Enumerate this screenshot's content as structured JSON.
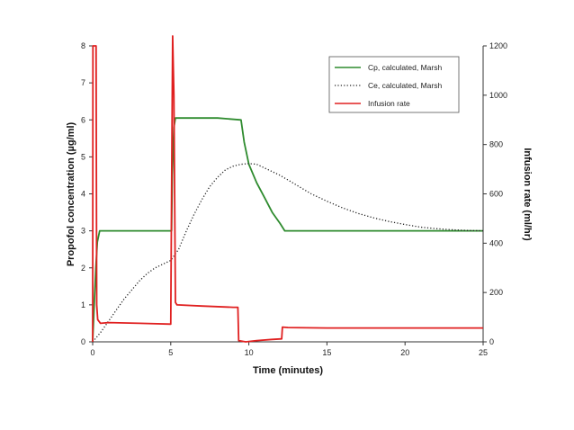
{
  "chart_data": {
    "type": "line",
    "xlabel": "Time (minutes)",
    "ylabel": "Propofol concentration (µg/ml)",
    "y2label": "Infusion rate (ml/hr)",
    "xlim": [
      0,
      25
    ],
    "ylim": [
      0,
      8
    ],
    "y2lim": [
      0,
      1200
    ],
    "x_ticks": [
      "0",
      "5",
      "10",
      "15",
      "20",
      "25"
    ],
    "y_ticks": [
      "0",
      "1",
      "2",
      "3",
      "4",
      "5",
      "6",
      "7",
      "8"
    ],
    "y2_ticks": [
      "0",
      "200",
      "400",
      "600",
      "800",
      "1000",
      "1200"
    ],
    "legend_position": "top-right",
    "series": [
      {
        "name": "Cp, calculated, Marsh",
        "axis": "left",
        "color": "#2e8b2e",
        "style": "solid",
        "points": [
          [
            0,
            0
          ],
          [
            0.1,
            1.0
          ],
          [
            0.2,
            2.0
          ],
          [
            0.3,
            2.7
          ],
          [
            0.45,
            3.0
          ],
          [
            1.0,
            3.0
          ],
          [
            5.05,
            3.0
          ],
          [
            5.1,
            4.5
          ],
          [
            5.2,
            5.8
          ],
          [
            5.3,
            6.05
          ],
          [
            7.0,
            6.05
          ],
          [
            8.0,
            6.05
          ],
          [
            9.5,
            6.0
          ],
          [
            9.7,
            5.4
          ],
          [
            10.0,
            4.8
          ],
          [
            10.5,
            4.3
          ],
          [
            11.0,
            3.9
          ],
          [
            11.5,
            3.5
          ],
          [
            12.0,
            3.2
          ],
          [
            12.3,
            3.0
          ],
          [
            15.0,
            3.0
          ],
          [
            20.0,
            3.0
          ],
          [
            25.0,
            3.0
          ]
        ]
      },
      {
        "name": "Ce, calculated, Marsh",
        "axis": "left",
        "color": "#222222",
        "style": "dotted",
        "points": [
          [
            0,
            0
          ],
          [
            0.5,
            0.25
          ],
          [
            1.0,
            0.55
          ],
          [
            1.5,
            0.85
          ],
          [
            2.0,
            1.15
          ],
          [
            2.5,
            1.4
          ],
          [
            3.0,
            1.65
          ],
          [
            3.5,
            1.85
          ],
          [
            4.0,
            2.0
          ],
          [
            4.5,
            2.1
          ],
          [
            5.0,
            2.2
          ],
          [
            5.5,
            2.5
          ],
          [
            6.0,
            3.0
          ],
          [
            6.5,
            3.45
          ],
          [
            7.0,
            3.85
          ],
          [
            7.5,
            4.2
          ],
          [
            8.0,
            4.45
          ],
          [
            8.5,
            4.65
          ],
          [
            9.0,
            4.75
          ],
          [
            9.5,
            4.8
          ],
          [
            10.0,
            4.82
          ],
          [
            10.5,
            4.8
          ],
          [
            11.0,
            4.7
          ],
          [
            12.0,
            4.5
          ],
          [
            13.0,
            4.25
          ],
          [
            14.0,
            4.0
          ],
          [
            15.0,
            3.8
          ],
          [
            16.0,
            3.62
          ],
          [
            17.0,
            3.47
          ],
          [
            18.0,
            3.35
          ],
          [
            19.0,
            3.25
          ],
          [
            20.0,
            3.17
          ],
          [
            21.0,
            3.1
          ],
          [
            22.0,
            3.06
          ],
          [
            23.0,
            3.03
          ],
          [
            24.0,
            3.01
          ],
          [
            25.0,
            3.0
          ]
        ]
      },
      {
        "name": "Infusion rate",
        "axis": "right",
        "color": "#e02020",
        "style": "solid",
        "points": [
          [
            0,
            0
          ],
          [
            0.02,
            1200
          ],
          [
            0.22,
            1200
          ],
          [
            0.26,
            150
          ],
          [
            0.32,
            90
          ],
          [
            0.5,
            75
          ],
          [
            1.0,
            78
          ],
          [
            3.0,
            75
          ],
          [
            5.0,
            72
          ],
          [
            5.05,
            600
          ],
          [
            5.12,
            1240
          ],
          [
            5.2,
            1000
          ],
          [
            5.3,
            160
          ],
          [
            5.4,
            150
          ],
          [
            7.0,
            145
          ],
          [
            9.0,
            140
          ],
          [
            9.3,
            140
          ],
          [
            9.35,
            5
          ],
          [
            9.8,
            0
          ],
          [
            10.5,
            5
          ],
          [
            11.5,
            10
          ],
          [
            12.1,
            12
          ],
          [
            12.15,
            60
          ],
          [
            12.5,
            58
          ],
          [
            15.0,
            56
          ],
          [
            20.0,
            56
          ],
          [
            25.0,
            56
          ]
        ]
      }
    ]
  }
}
